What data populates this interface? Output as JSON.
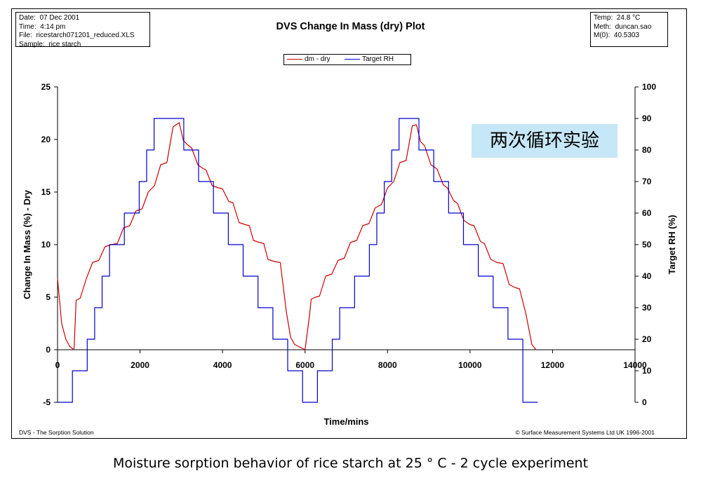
{
  "header": {
    "info_left": [
      {
        "label": "Date:",
        "value": "07 Dec 2001"
      },
      {
        "label": "Time:",
        "value": "4:14 pm"
      },
      {
        "label": "File:",
        "value": "ricestarch071201_reduced.XLS"
      },
      {
        "label": "Sample:",
        "value": "rice starch"
      }
    ],
    "info_right": [
      {
        "label": "Temp:",
        "value": "24.8 °C"
      },
      {
        "label": "Meth:",
        "value": "duncan.sao"
      },
      {
        "label": "M(0):",
        "value": "40.5303"
      }
    ]
  },
  "footer": {
    "left": "DVS - The Sorption Solution",
    "right": "© Surface Measurement Systems Ltd UK 1996-2001"
  },
  "caption": "Moisture sorption behavior of rice starch at 25 ° C - 2 cycle experiment",
  "annotation": "两次循环实验",
  "colors": {
    "dm": "#cc0000",
    "rh": "#0000cc",
    "annotation_bg": "#c6e7f7"
  },
  "chart_data": {
    "type": "line",
    "title": "DVS Change In Mass (dry) Plot",
    "xlabel": "Time/mins",
    "ylabel": "Change In Mass (%) - Dry",
    "y2label": "Target RH (%)",
    "xlim": [
      0,
      14000
    ],
    "ylim": [
      -5,
      25
    ],
    "y2lim": [
      0,
      100
    ],
    "xticks": [
      0,
      2000,
      4000,
      6000,
      8000,
      10000,
      12000,
      14000
    ],
    "yticks": [
      -5,
      0,
      5,
      10,
      15,
      20,
      25
    ],
    "y2ticks": [
      0,
      10,
      20,
      30,
      40,
      50,
      60,
      70,
      80,
      90,
      100
    ],
    "legend": {
      "position": "top-center",
      "entries": [
        "dm - dry",
        "Target RH"
      ]
    },
    "grid": false,
    "series": [
      {
        "name": "dm - dry",
        "axis": "left",
        "color": "#cc0000",
        "x": [
          0,
          100,
          200,
          300,
          400,
          450,
          550,
          700,
          850,
          1000,
          1150,
          1300,
          1450,
          1600,
          1750,
          1900,
          2050,
          2200,
          2350,
          2500,
          2650,
          2800,
          2950,
          3050,
          3150,
          3250,
          3400,
          3500,
          3600,
          3750,
          3900,
          4000,
          4150,
          4250,
          4400,
          4550,
          4650,
          4750,
          4900,
          5000,
          5100,
          5250,
          5400,
          5550,
          5650,
          5750,
          5900,
          6000,
          6100,
          6150,
          6250,
          6350,
          6500,
          6650,
          6800,
          6950,
          7100,
          7250,
          7400,
          7550,
          7700,
          7850,
          8000,
          8150,
          8300,
          8450,
          8600,
          8700,
          8800,
          8900,
          9050,
          9200,
          9350,
          9450,
          9600,
          9700,
          9850,
          10000,
          10100,
          10250,
          10350,
          10500,
          10650,
          10800,
          10950,
          11100,
          11200,
          11350,
          11500,
          11600
        ],
        "values": [
          6.8,
          2.5,
          1.0,
          0.3,
          0.0,
          4.7,
          4.9,
          6.8,
          8.3,
          8.5,
          9.8,
          10.0,
          10.1,
          11.6,
          11.8,
          13.2,
          13.4,
          15.0,
          15.6,
          17.6,
          17.8,
          21.2,
          21.6,
          19.9,
          19.5,
          19.2,
          17.6,
          17.3,
          17.1,
          15.6,
          15.4,
          15.3,
          14.1,
          14.0,
          12.1,
          11.9,
          11.8,
          10.4,
          10.2,
          10.1,
          8.6,
          8.4,
          8.3,
          3.5,
          1.2,
          0.5,
          0.2,
          0.0,
          3.0,
          4.8,
          5.0,
          5.1,
          7.0,
          7.2,
          8.5,
          8.7,
          10.2,
          10.4,
          11.8,
          12.0,
          13.5,
          13.8,
          15.4,
          16.0,
          17.8,
          18.0,
          21.3,
          21.4,
          19.8,
          19.4,
          17.6,
          17.2,
          15.7,
          15.4,
          14.2,
          13.9,
          12.3,
          11.9,
          11.8,
          10.3,
          10.1,
          8.6,
          8.3,
          8.2,
          6.2,
          5.9,
          5.8,
          3.5,
          0.5,
          0.0
        ]
      },
      {
        "name": "Target RH",
        "axis": "right",
        "color": "#0000cc",
        "x": [
          0,
          360,
          360,
          720,
          720,
          900,
          900,
          1080,
          1080,
          1260,
          1260,
          1620,
          1620,
          1980,
          1980,
          2160,
          2160,
          2340,
          2340,
          2520,
          2520,
          2700,
          2700,
          3060,
          3060,
          3420,
          3420,
          3780,
          3780,
          4140,
          4140,
          4500,
          4500,
          4860,
          4860,
          5220,
          5220,
          5580,
          5580,
          5940,
          5940,
          6300,
          6300,
          6660,
          6660,
          6840,
          6840,
          7200,
          7200,
          7560,
          7560,
          7740,
          7740,
          7920,
          7920,
          8100,
          8100,
          8280,
          8280,
          8460,
          8460,
          8760,
          8760,
          9120,
          9120,
          9480,
          9480,
          9840,
          9840,
          10200,
          10200,
          10560,
          10560,
          10920,
          10920,
          11280,
          11280,
          11640
        ],
        "values": [
          0,
          0,
          10,
          10,
          20,
          20,
          30,
          30,
          40,
          40,
          50,
          50,
          60,
          60,
          70,
          70,
          80,
          80,
          90,
          90,
          90,
          90,
          90,
          90,
          80,
          80,
          70,
          70,
          60,
          60,
          50,
          50,
          40,
          40,
          30,
          30,
          20,
          20,
          10,
          10,
          0,
          0,
          10,
          10,
          20,
          20,
          30,
          30,
          40,
          40,
          50,
          50,
          60,
          60,
          70,
          70,
          80,
          80,
          90,
          90,
          90,
          90,
          80,
          80,
          70,
          70,
          60,
          60,
          50,
          50,
          40,
          40,
          30,
          30,
          20,
          20,
          0,
          0
        ]
      }
    ]
  }
}
